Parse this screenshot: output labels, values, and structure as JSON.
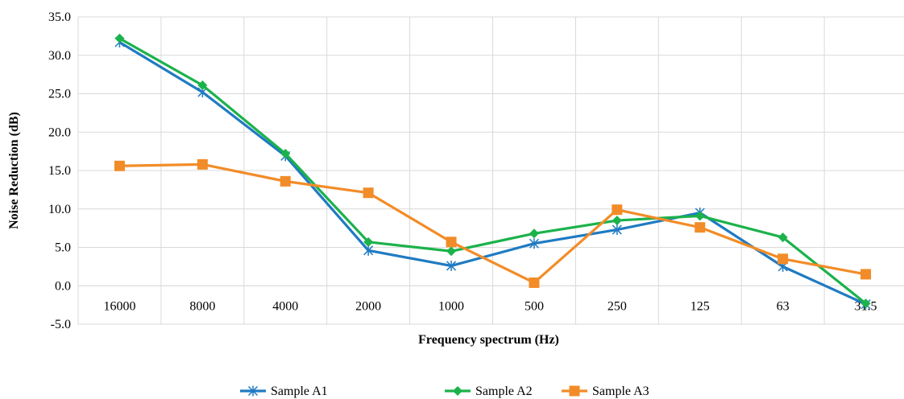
{
  "chart_data": {
    "type": "line",
    "categories": [
      "16000",
      "8000",
      "4000",
      "2000",
      "1000",
      "500",
      "250",
      "125",
      "63",
      "31.5"
    ],
    "xlabel": "Frequency spectrum (Hz)",
    "ylabel": "Noise Reduction (dB)",
    "ylim": [
      -5,
      35
    ],
    "yticks": [
      "-5.0",
      "0.0",
      "5.0",
      "10.0",
      "15.0",
      "20.0",
      "25.0",
      "30.0",
      "35.0"
    ],
    "grid": true,
    "legend_position": "bottom",
    "series": [
      {
        "name": "Sample A1",
        "color": "#1f7bc2",
        "marker": "star",
        "values": [
          31.7,
          25.2,
          16.9,
          4.6,
          2.6,
          5.5,
          7.3,
          9.5,
          2.5,
          -2.4
        ]
      },
      {
        "name": "Sample A2",
        "color": "#1bb24b",
        "marker": "diamond",
        "values": [
          32.2,
          26.1,
          17.2,
          5.7,
          4.5,
          6.8,
          8.5,
          9.1,
          6.3,
          -2.3
        ]
      },
      {
        "name": "Sample A3",
        "color": "#f28c28",
        "marker": "square",
        "values": [
          15.6,
          15.8,
          13.6,
          12.1,
          5.7,
          0.4,
          9.9,
          7.6,
          3.5,
          1.5
        ]
      }
    ]
  }
}
